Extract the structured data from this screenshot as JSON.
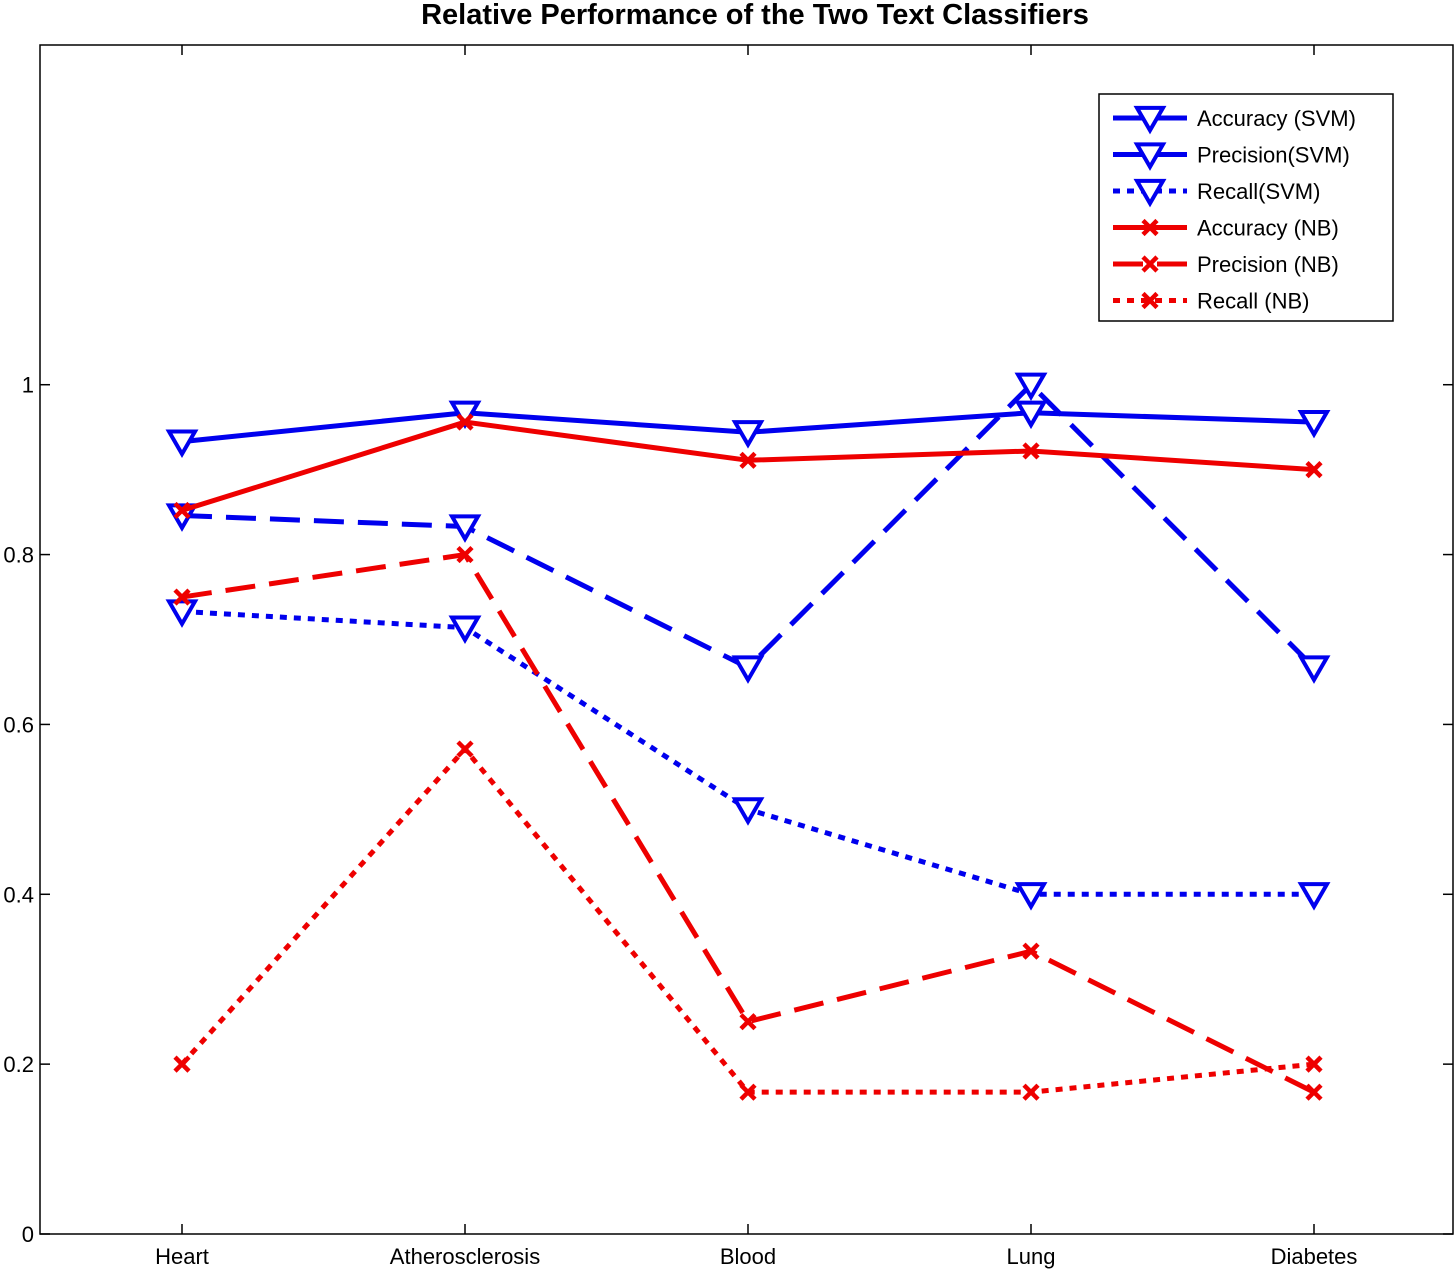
{
  "chart_data": {
    "type": "line",
    "title": "Relative Performance of the Two Text Classifiers",
    "xlabel": "",
    "ylabel": "",
    "categories": [
      "Heart",
      "Atherosclerosis",
      "Blood",
      "Lung",
      "Diabetes"
    ],
    "ylim": [
      0,
      1.4
    ],
    "yticks": [
      0,
      0.2,
      0.4,
      0.6,
      0.8,
      1
    ],
    "ytick_labels": [
      "0",
      "0.2",
      "0.4",
      "0.6",
      "0.8",
      "1"
    ],
    "grid": false,
    "legend_position": "top-right",
    "series": [
      {
        "name": "Accuracy (SVM)",
        "values": [
          0.933,
          0.967,
          0.944,
          0.967,
          0.956
        ],
        "color": "#0000ee",
        "dash": "solid",
        "marker": "triangle-down"
      },
      {
        "name": "Precision(SVM)",
        "values": [
          0.846,
          0.833,
          0.667,
          1.0,
          0.667
        ],
        "color": "#0000ee",
        "dash": "dashed",
        "marker": "triangle-down"
      },
      {
        "name": "Recall(SVM)",
        "values": [
          0.733,
          0.714,
          0.5,
          0.4,
          0.4
        ],
        "color": "#0000ee",
        "dash": "dotted",
        "marker": "triangle-down"
      },
      {
        "name": "Accuracy (NB)",
        "values": [
          0.852,
          0.956,
          0.911,
          0.922,
          0.9
        ],
        "color": "#ee0000",
        "dash": "solid",
        "marker": "x"
      },
      {
        "name": "Precision (NB)",
        "values": [
          0.75,
          0.8,
          0.25,
          0.333,
          0.167
        ],
        "color": "#ee0000",
        "dash": "dashed",
        "marker": "x"
      },
      {
        "name": "Recall (NB)",
        "values": [
          0.2,
          0.571,
          0.167,
          0.167,
          0.2
        ],
        "color": "#ee0000",
        "dash": "dotted",
        "marker": "x"
      }
    ]
  }
}
